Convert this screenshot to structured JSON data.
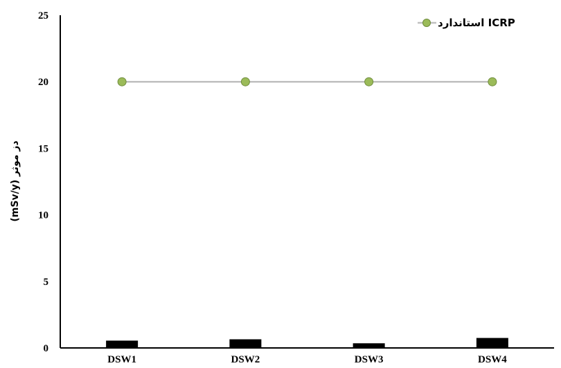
{
  "chart_data": {
    "type": "bar",
    "categories": [
      "DSW1",
      "DSW2",
      "DSW3",
      "DSW4"
    ],
    "series": [
      {
        "name": "",
        "type": "bar",
        "values": [
          0.55,
          0.65,
          0.35,
          0.75
        ],
        "color": "#000000"
      },
      {
        "name": "استاندارد ICRP",
        "type": "line",
        "values": [
          20,
          20,
          20,
          20
        ],
        "color": "#bfbfbf",
        "marker_color": "#9bbb59",
        "marker_edge": "#6e8b3d"
      }
    ],
    "title": "",
    "xlabel": "",
    "ylabel": "دز موثر (mSv/y)",
    "ylim": [
      0,
      25
    ],
    "yticks": [
      0,
      5,
      10,
      15,
      20,
      25
    ],
    "grid": false,
    "legend_position": "top-right"
  }
}
